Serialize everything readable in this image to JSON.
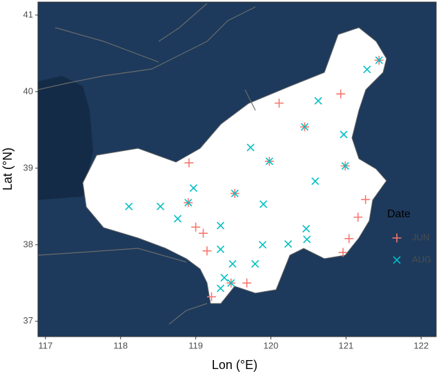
{
  "chart_data": {
    "type": "scatter",
    "xlabel": "Lon  (°E)",
    "ylabel": "Lat  (°N)",
    "xlim": [
      116.9,
      122.2
    ],
    "ylim": [
      36.8,
      41.17
    ],
    "xticks": [
      117,
      118,
      119,
      120,
      121,
      122
    ],
    "yticks": [
      37,
      38,
      39,
      40,
      41
    ],
    "legend_title": "Date",
    "legend": "right",
    "series": [
      {
        "name": "JUN",
        "color": "#f8766d",
        "marker": "plus",
        "x": [
          118.91,
          120.11,
          120.93,
          120.45,
          121.44,
          119.98,
          120.99,
          119.52,
          118.9,
          121.26,
          121.16,
          119.0,
          119.1,
          119.15,
          121.04,
          120.96,
          119.47,
          119.68,
          119.21
        ],
        "y": [
          39.07,
          39.85,
          39.97,
          39.54,
          40.41,
          39.09,
          39.03,
          38.67,
          38.55,
          38.59,
          38.36,
          38.23,
          38.15,
          37.92,
          38.08,
          37.9,
          37.5,
          37.5,
          37.32
        ]
      },
      {
        "name": "AUG",
        "color": "#00bfc4",
        "marker": "cross",
        "x": [
          118.11,
          118.53,
          118.76,
          118.97,
          118.9,
          119.52,
          119.73,
          119.98,
          120.45,
          120.63,
          121.28,
          121.44,
          120.97,
          120.99,
          120.59,
          119.9,
          119.33,
          119.33,
          119.89,
          120.23,
          120.47,
          120.48,
          119.49,
          119.79,
          119.38,
          119.33,
          119.47
        ],
        "y": [
          38.5,
          38.5,
          38.34,
          38.74,
          38.55,
          38.67,
          39.27,
          39.09,
          39.54,
          39.88,
          40.29,
          40.41,
          39.44,
          39.03,
          38.83,
          38.53,
          38.25,
          37.94,
          38.0,
          38.01,
          38.21,
          38.07,
          37.75,
          37.75,
          37.57,
          37.43,
          37.5
        ]
      }
    ]
  }
}
